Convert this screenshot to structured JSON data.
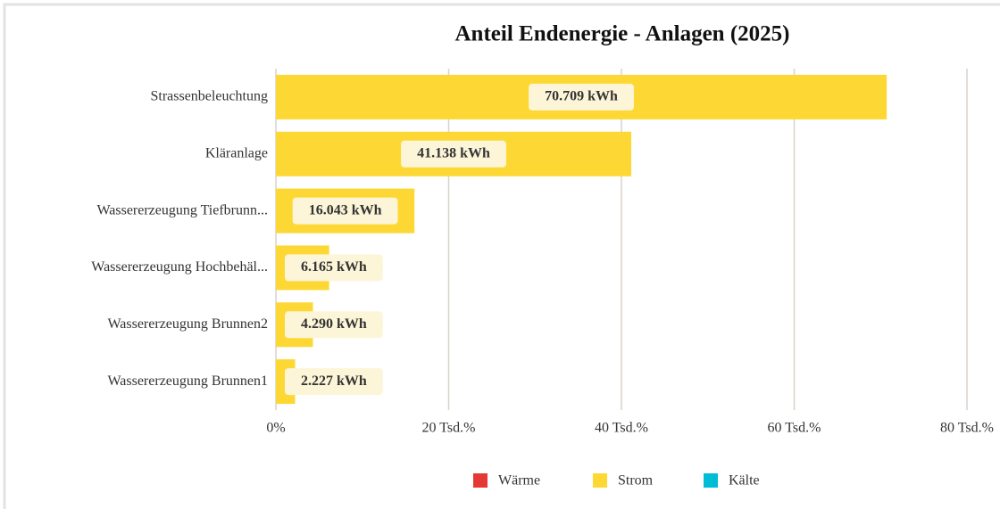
{
  "chart_data": {
    "type": "bar",
    "orientation": "horizontal",
    "title": "Anteil Endenergie - Anlagen (2025)",
    "categories": [
      "Strassenbeleuchtung",
      "Kläranlage",
      "Wassererzeugung Tiefbrunn...",
      "Wassererzeugung Hochbehäl...",
      "Wassererzeugung Brunnen2",
      "Wassererzeugung Brunnen1"
    ],
    "series": [
      {
        "name": "Wärme",
        "color": "#e53935",
        "values": [
          null,
          null,
          null,
          null,
          null,
          null
        ]
      },
      {
        "name": "Strom",
        "color": "#fdd835",
        "values": [
          70709,
          41138,
          16043,
          6165,
          4290,
          2227
        ],
        "value_labels": [
          "70.709 kWh",
          "41.138 kWh",
          "16.043 kWh",
          "6.165 kWh",
          "4.290 kWh",
          "2.227 kWh"
        ]
      },
      {
        "name": "Kälte",
        "color": "#00bcd4",
        "values": [
          null,
          null,
          null,
          null,
          null,
          null
        ]
      }
    ],
    "xlim": [
      0,
      80000
    ],
    "xticks": [
      {
        "value": 0,
        "label": "0%"
      },
      {
        "value": 20000,
        "label": "20 Tsd.%"
      },
      {
        "value": 40000,
        "label": "40 Tsd.%"
      },
      {
        "value": 60000,
        "label": "60 Tsd.%"
      },
      {
        "value": 80000,
        "label": "80 Tsd.%"
      }
    ],
    "grid": true,
    "legend": "bottom"
  }
}
